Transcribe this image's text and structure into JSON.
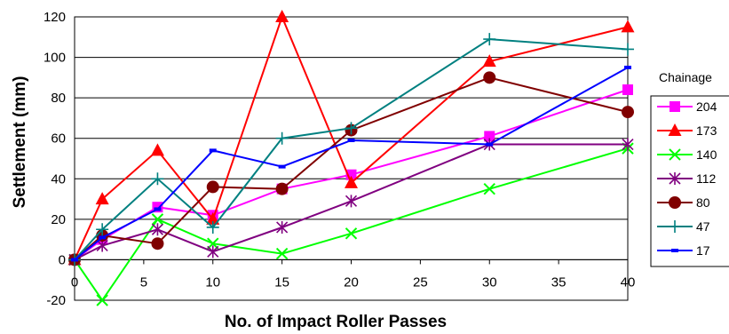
{
  "chart_data": {
    "type": "line",
    "title": "",
    "xlabel": "No. of Impact Roller Passes",
    "ylabel": "Settlement (mm)",
    "xlim": [
      0,
      40
    ],
    "ylim": [
      -20,
      120
    ],
    "x_ticks": [
      0,
      5,
      10,
      15,
      20,
      25,
      30,
      35,
      40
    ],
    "y_ticks": [
      -20,
      0,
      20,
      40,
      60,
      80,
      100,
      120
    ],
    "grid": "horizontal",
    "legend": {
      "title": "Chainage",
      "position": "right"
    },
    "series": [
      {
        "name": "204",
        "color": "#ff00ff",
        "marker": "square",
        "x": [
          0,
          2,
          6,
          10,
          15,
          20,
          30,
          40
        ],
        "y": [
          0,
          10,
          26,
          22,
          35,
          42,
          61,
          84
        ]
      },
      {
        "name": "173",
        "color": "#ff0000",
        "marker": "triangle",
        "x": [
          0,
          2,
          6,
          10,
          15,
          20,
          30,
          40
        ],
        "y": [
          0,
          30,
          54,
          20,
          120,
          38,
          98,
          115
        ]
      },
      {
        "name": "140",
        "color": "#00ff00",
        "marker": "x",
        "x": [
          0,
          2,
          6,
          10,
          15,
          20,
          30,
          40
        ],
        "y": [
          0,
          -20,
          20,
          8,
          3,
          13,
          35,
          55
        ]
      },
      {
        "name": "112",
        "color": "#800080",
        "marker": "star",
        "x": [
          0,
          2,
          6,
          10,
          15,
          20,
          30,
          40
        ],
        "y": [
          0,
          7,
          15,
          4,
          16,
          29,
          57,
          57
        ]
      },
      {
        "name": "80",
        "color": "#800000",
        "marker": "circle",
        "x": [
          0,
          2,
          6,
          10,
          15,
          20,
          30,
          40
        ],
        "y": [
          0,
          12,
          8,
          36,
          35,
          64,
          90,
          73
        ]
      },
      {
        "name": "47",
        "color": "#008080",
        "marker": "plus",
        "x": [
          0,
          2,
          6,
          10,
          15,
          20,
          30,
          40
        ],
        "y": [
          0,
          15,
          40,
          16,
          60,
          65,
          109,
          104
        ]
      },
      {
        "name": "17",
        "color": "#0000ff",
        "marker": "dash",
        "x": [
          0,
          2,
          6,
          10,
          15,
          20,
          30,
          40
        ],
        "y": [
          0,
          11,
          25,
          54,
          46,
          59,
          57,
          95
        ]
      }
    ]
  }
}
